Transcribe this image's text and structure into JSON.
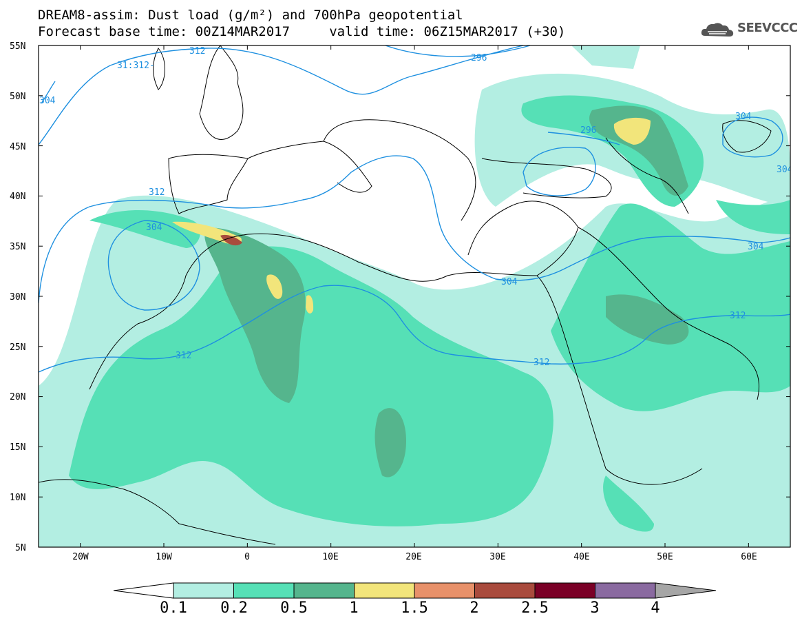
{
  "title": {
    "line1": "DREAM8-assim: Dust load (g/m²) and 700hPa geopotential",
    "line2": "Forecast base time: 00Z14MAR2017     valid time: 06Z15MAR2017 (+30)"
  },
  "logo": {
    "text": "SEEVCCC",
    "icon": "cloud-icon"
  },
  "map": {
    "lon_range": [
      -25,
      65
    ],
    "lat_range": [
      5,
      55
    ],
    "lat_labels": [
      "55N",
      "50N",
      "45N",
      "40N",
      "35N",
      "30N",
      "25N",
      "20N",
      "15N",
      "10N",
      "5N"
    ],
    "lon_labels": [
      "20W",
      "10W",
      "0",
      "10E",
      "20E",
      "30E",
      "40E",
      "50E",
      "60E"
    ],
    "contour_labels": [
      "31:312-",
      "312",
      "296",
      "304",
      "296",
      "304",
      "312",
      "304",
      "304",
      "312",
      "312",
      "312",
      "304",
      "304"
    ]
  },
  "colorbar": {
    "labels": [
      "0.1",
      "0.2",
      "0.5",
      "1",
      "1.5",
      "2",
      "2.5",
      "3",
      "4"
    ],
    "colors": [
      "#ffffff",
      "#b3eee2",
      "#56e0b6",
      "#55b58d",
      "#f2e57b",
      "#e8916a",
      "#a94b3d",
      "#7a0026",
      "#8a6aa0",
      "#a6a6a6"
    ]
  }
}
